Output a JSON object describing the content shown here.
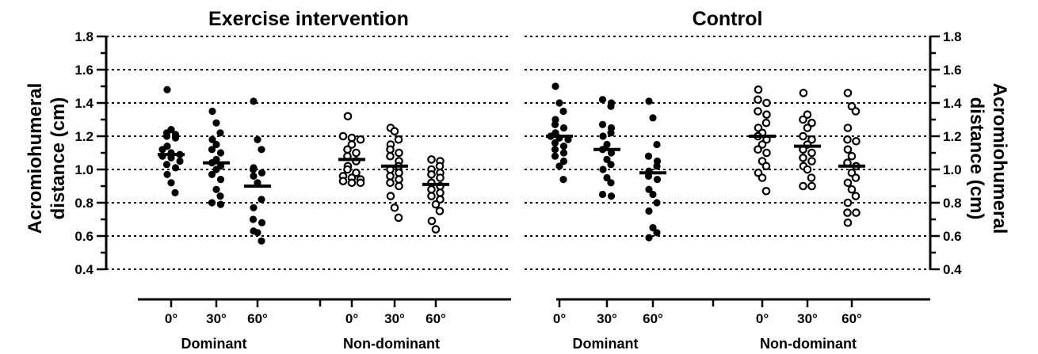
{
  "chart_data": {
    "type": "scatter",
    "panels": [
      {
        "title": "Exercise intervention",
        "groups": [
          {
            "label": "Dominant",
            "marker": "filled",
            "categories": [
              {
                "label": "0°",
                "mean": 1.09,
                "values": [
                  1.48,
                  1.24,
                  1.22,
                  1.21,
                  1.2,
                  1.19,
                  1.14,
                  1.12,
                  1.1,
                  1.09,
                  1.08,
                  1.07,
                  1.05,
                  1.03,
                  1.01,
                  0.97,
                  0.92,
                  0.86
                ]
              },
              {
                "label": "30°",
                "mean": 1.04,
                "values": [
                  1.35,
                  1.28,
                  1.22,
                  1.18,
                  1.15,
                  1.12,
                  1.1,
                  1.06,
                  1.04,
                  1.02,
                  1.0,
                  0.97,
                  0.94,
                  0.88,
                  0.84,
                  0.8,
                  0.79
                ]
              },
              {
                "label": "60°",
                "mean": 0.9,
                "values": [
                  1.41,
                  1.18,
                  1.12,
                  1.01,
                  1.0,
                  0.98,
                  0.96,
                  0.92,
                  0.82,
                  0.77,
                  0.7,
                  0.68,
                  0.63,
                  0.62,
                  0.57
                ]
              }
            ]
          },
          {
            "label": "Non-dominant",
            "marker": "open",
            "categories": [
              {
                "label": "0°",
                "mean": 1.06,
                "values": [
                  1.32,
                  1.2,
                  1.19,
                  1.18,
                  1.15,
                  1.12,
                  1.1,
                  1.08,
                  1.05,
                  1.02,
                  1.0,
                  0.98,
                  0.96,
                  0.95,
                  0.94,
                  0.93,
                  0.92,
                  0.92
                ]
              },
              {
                "label": "30°",
                "mean": 1.02,
                "values": [
                  1.25,
                  1.23,
                  1.18,
                  1.15,
                  1.12,
                  1.1,
                  1.08,
                  1.05,
                  1.02,
                  1.0,
                  0.98,
                  0.96,
                  0.94,
                  0.92,
                  0.9,
                  0.84,
                  0.77,
                  0.71
                ]
              },
              {
                "label": "60°",
                "mean": 0.91,
                "values": [
                  1.06,
                  1.05,
                  1.02,
                  1.0,
                  0.98,
                  0.97,
                  0.95,
                  0.92,
                  0.9,
                  0.88,
                  0.86,
                  0.84,
                  0.82,
                  0.79,
                  0.75,
                  0.69,
                  0.64
                ]
              }
            ]
          }
        ]
      },
      {
        "title": "Control",
        "groups": [
          {
            "label": "Dominant",
            "marker": "filled",
            "categories": [
              {
                "label": "0°",
                "mean": 1.2,
                "values": [
                  1.5,
                  1.4,
                  1.35,
                  1.3,
                  1.27,
                  1.25,
                  1.22,
                  1.2,
                  1.19,
                  1.18,
                  1.16,
                  1.14,
                  1.12,
                  1.1,
                  1.08,
                  1.05,
                  1.02,
                  0.94
                ]
              },
              {
                "label": "30°",
                "mean": 1.12,
                "values": [
                  1.42,
                  1.4,
                  1.38,
                  1.27,
                  1.25,
                  1.22,
                  1.2,
                  1.15,
                  1.12,
                  1.1,
                  1.06,
                  1.03,
                  1.0,
                  0.95,
                  0.92,
                  0.85,
                  0.84
                ]
              },
              {
                "label": "60°",
                "mean": 0.98,
                "values": [
                  1.41,
                  1.31,
                  1.15,
                  1.08,
                  1.05,
                  1.02,
                  0.99,
                  0.96,
                  0.94,
                  0.88,
                  0.85,
                  0.8,
                  0.75,
                  0.65,
                  0.62,
                  0.59
                ]
              }
            ]
          },
          {
            "label": "Non-dominant",
            "marker": "open",
            "categories": [
              {
                "label": "0°",
                "mean": 1.2,
                "values": [
                  1.48,
                  1.42,
                  1.4,
                  1.35,
                  1.33,
                  1.28,
                  1.25,
                  1.22,
                  1.2,
                  1.18,
                  1.15,
                  1.12,
                  1.1,
                  1.05,
                  1.02,
                  0.98,
                  0.95,
                  0.87
                ]
              },
              {
                "label": "30°",
                "mean": 1.14,
                "values": [
                  1.46,
                  1.33,
                  1.3,
                  1.28,
                  1.25,
                  1.2,
                  1.18,
                  1.15,
                  1.12,
                  1.1,
                  1.07,
                  1.05,
                  1.02,
                  1.0,
                  0.95,
                  0.9,
                  0.9
                ]
              },
              {
                "label": "60°",
                "mean": 1.02,
                "values": [
                  1.46,
                  1.38,
                  1.35,
                  1.25,
                  1.18,
                  1.17,
                  1.12,
                  1.08,
                  1.04,
                  1.02,
                  0.98,
                  0.95,
                  0.92,
                  0.88,
                  0.84,
                  0.8,
                  0.74,
                  0.74,
                  0.68
                ]
              }
            ]
          }
        ]
      }
    ],
    "ylabel": "Acromiohumeral distance (cm)",
    "ylabel_left": [
      "Acromiohumeral",
      "distance (cm)"
    ],
    "ylabel_right": [
      "Acromiohumeral",
      "distance (cm)"
    ],
    "ylim": [
      0.4,
      1.8
    ],
    "yticks": [
      "0.4",
      "0.6",
      "0.8",
      "1.0",
      "1.2",
      "1.4",
      "1.6",
      "1.8"
    ],
    "grid": "horizontal dotted",
    "colors": {
      "marker": "#000000",
      "grid": "#000000",
      "background": "#ffffff"
    }
  }
}
